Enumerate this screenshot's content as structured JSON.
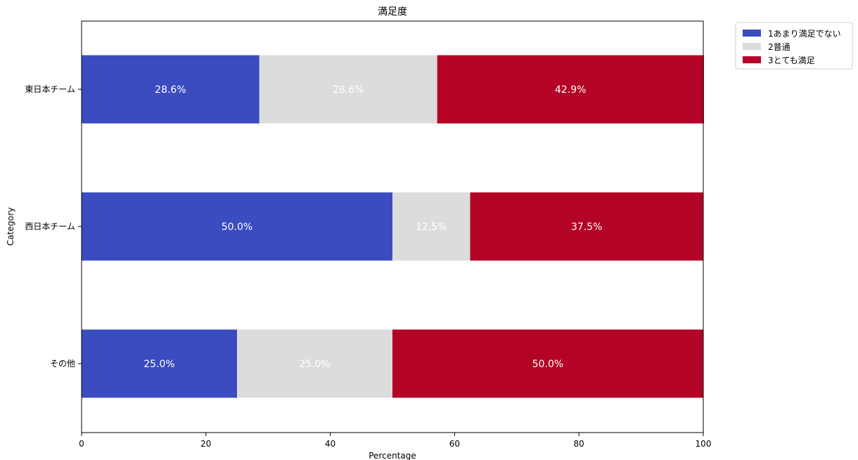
{
  "chart_data": {
    "type": "bar",
    "orientation": "horizontal",
    "stacked": true,
    "title": "満足度",
    "xlabel": "Percentage",
    "ylabel": "Category",
    "xlim": [
      0,
      100
    ],
    "xticks": [
      0,
      20,
      40,
      60,
      80,
      100
    ],
    "categories": [
      "東日本チーム",
      "西日本チーム",
      "その他"
    ],
    "series": [
      {
        "name": "1あまり満足でない",
        "color": "#3b4cc0",
        "values": [
          28.6,
          50.0,
          25.0
        ],
        "labels": [
          "28.6%",
          "50.0%",
          "25.0%"
        ]
      },
      {
        "name": "2普通",
        "color": "#dddcdc",
        "values": [
          28.6,
          12.5,
          25.0
        ],
        "labels": [
          "28.6%",
          "12.5%",
          "25.0%"
        ]
      },
      {
        "name": "3とても満足",
        "color": "#b40426",
        "values": [
          42.9,
          37.5,
          50.0
        ],
        "labels": [
          "42.9%",
          "37.5%",
          "50.0%"
        ]
      }
    ],
    "grid": false,
    "legend_position": "outside-top-right"
  }
}
